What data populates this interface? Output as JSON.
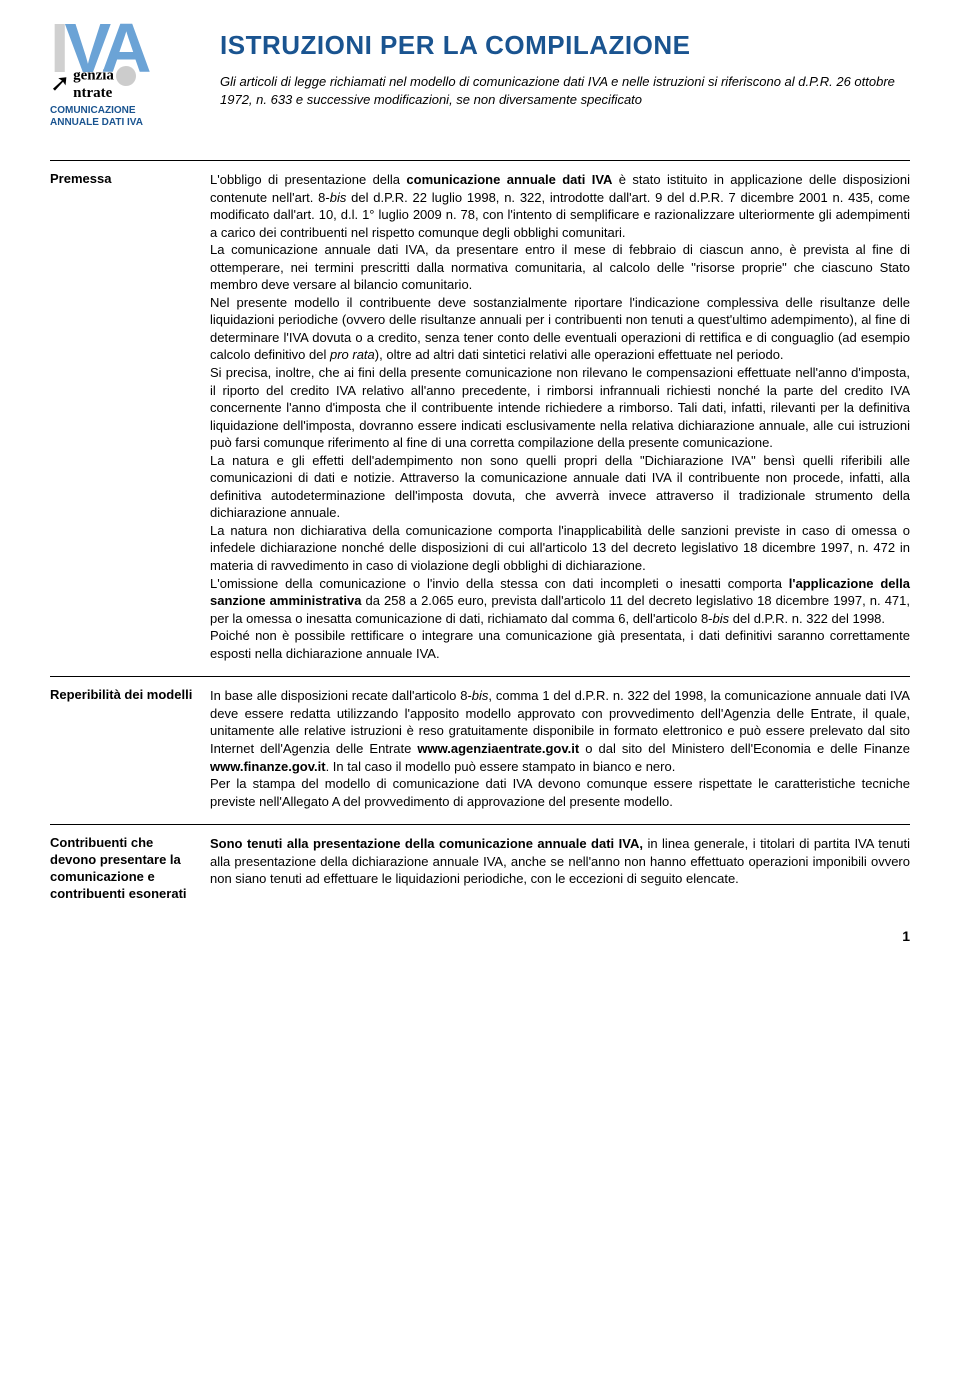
{
  "logo": {
    "iva": "IVA",
    "agenzia_line1": "genzia",
    "agenzia_line2": "ntrate",
    "comunicazione_line1": "COMUNICAZIONE",
    "comunicazione_line2": "ANNUALE DATI IVA"
  },
  "header": {
    "title": "ISTRUZIONI PER LA COMPILAZIONE",
    "subtitle": "Gli articoli di legge richiamati nel modello di comunicazione dati IVA e nelle istruzioni si riferiscono al d.P.R. 26 ottobre 1972, n. 633 e successive modificazioni, se non diversamente specificato"
  },
  "sections": {
    "premessa": {
      "label": "Premessa",
      "html": "L'obbligo di presentazione della <b>comunicazione annuale dati IVA</b> è stato istituito in applicazione delle disposizioni contenute nell'art. 8-<i>bis</i> del d.P.R. 22 luglio 1998, n. 322, introdotte dall'art. 9 del d.P.R. 7 dicembre 2001 n. 435, come modificato dall'art. 10, d.l. 1° luglio 2009 n. 78, con l'intento di semplificare e razionalizzare ulteriormente gli adempimenti a carico dei contribuenti nel rispetto comunque degli obblighi comunitari.<br>La comunicazione annuale dati IVA, da presentare entro il mese di febbraio di ciascun anno, è prevista al fine di ottemperare, nei termini prescritti dalla normativa comunitaria, al calcolo delle \"risorse proprie\" che ciascuno Stato membro deve versare al bilancio comunitario.<br>Nel presente modello il contribuente deve sostanzialmente riportare l'indicazione complessiva delle risultanze delle liquidazioni periodiche (ovvero delle risultanze annuali per i contribuenti non tenuti a quest'ultimo adempimento), al fine di determinare l'IVA dovuta o a credito, senza tener conto delle eventuali operazioni di rettifica e di conguaglio (ad esempio calcolo definitivo del <i>pro rata</i>), oltre ad altri dati sintetici relativi alle operazioni effettuate nel periodo.<br>Si precisa, inoltre, che ai fini della presente comunicazione non rilevano le compensazioni effettuate nell'anno d'imposta, il riporto del credito IVA relativo all'anno precedente, i rimborsi infrannuali richiesti nonché la parte del credito IVA concernente l'anno d'imposta che il contribuente intende richiedere a rimborso. Tali dati, infatti, rilevanti per la definitiva liquidazione dell'imposta, dovranno essere indicati esclusivamente nella relativa dichiarazione annuale, alle cui istruzioni può farsi comunque riferimento al fine di una corretta compilazione della presente comunicazione.<br>La natura e gli effetti dell'adempimento non sono quelli propri della \"Dichiarazione IVA\" bensì quelli riferibili alle comunicazioni di dati e notizie. Attraverso la comunicazione annuale dati IVA il contribuente non procede, infatti, alla definitiva autodeterminazione dell'imposta dovuta, che avverrà invece attraverso il tradizionale strumento della dichiarazione annuale.<br>La natura non dichiarativa della comunicazione comporta l'inapplicabilità delle sanzioni previste in caso di omessa o infedele dichiarazione nonché delle disposizioni di cui all'articolo 13 del decreto legislativo 18 dicembre 1997, n. 472 in materia di ravvedimento in caso di violazione degli obblighi di dichiarazione.<br>L'omissione della comunicazione o l'invio della stessa con dati incompleti o inesatti comporta <b>l'applicazione della sanzione amministrativa</b> da 258 a 2.065 euro, prevista dall'articolo 11 del decreto legislativo 18 dicembre 1997, n. 471, per la omessa o inesatta comunicazione di dati, richiamato dal comma 6, dell'articolo 8-<i>bis</i> del d.P.R. n. 322 del 1998.<br>Poiché non è possibile rettificare o integrare una comunicazione già presentata, i dati definitivi saranno correttamente esposti nella dichiarazione annuale IVA."
    },
    "reperibilita": {
      "label": "Reperibilità dei modelli",
      "html": "In base alle disposizioni recate dall'articolo 8-<i>bis</i>, comma 1 del d.P.R. n. 322 del 1998, la comunicazione annuale dati IVA deve essere redatta utilizzando l'apposito modello approvato con provvedimento dell'Agenzia delle Entrate, il quale, unitamente alle relative istruzioni è reso gratuitamente disponibile in formato elettronico e può essere prelevato dal sito Internet dell'Agenzia delle Entrate <b>www.agenziaentrate.gov.it</b> o dal sito del Ministero dell'Economia e delle Finanze <b>www.finanze.gov.it</b>. In tal caso il modello può essere stampato in bianco e nero.<br>Per la stampa del modello di comunicazione dati IVA devono comunque essere rispettate le caratteristiche tecniche previste nell'Allegato A del provvedimento di approvazione del presente modello."
    },
    "contribuenti": {
      "label": "Contribuenti che devono presentare la comunicazione e contribuenti esonerati",
      "html": "<b>Sono tenuti alla presentazione della comunicazione annuale dati IVA,</b> in linea generale, i titolari di partita IVA tenuti alla presentazione della dichiarazione annuale IVA, anche se nell'anno non hanno effettuato operazioni imponibili ovvero non siano tenuti ad effettuare le liquidazioni periodiche, con le eccezioni di seguito elencate."
    }
  },
  "page_number": "1",
  "colors": {
    "title_color": "#1a5490",
    "iva_color": "#6ba3d6",
    "text_color": "#000000",
    "background": "#ffffff"
  },
  "typography": {
    "title_fontsize": 26,
    "body_fontsize": 13,
    "label_fontsize": 13
  }
}
